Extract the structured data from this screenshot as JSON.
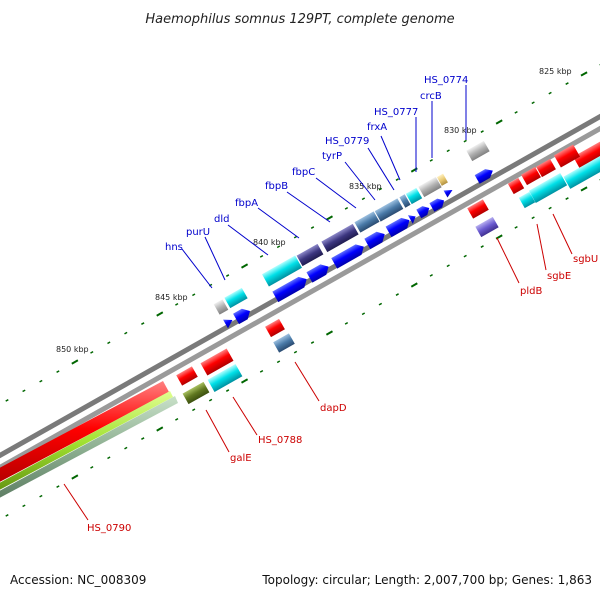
{
  "title": "Haemophilus somnus 129PT, complete genome",
  "footer": {
    "accession": "Accession: NC_008309",
    "summary": "Topology: circular; Length: 2,007,700 bp; Genes: 1,863"
  },
  "colors": {
    "label_forward": "#0000cc",
    "label_reverse": "#cc0000",
    "tick": "#006600",
    "backbone": "#888888"
  },
  "scale_labels": [
    "825 kbp",
    "830 kbp",
    "835 kbp",
    "840 kbp",
    "845 kbp",
    "850 kbp"
  ],
  "gene_labels_forward": [
    "HS_0774",
    "crcB",
    "HS_0777",
    "frxA",
    "HS_0779",
    "tyrP",
    "fbpC",
    "fbpB",
    "fbpA",
    "dld",
    "purU",
    "hns"
  ],
  "gene_labels_reverse": [
    "sgbU",
    "sgbE",
    "pldB",
    "dapD",
    "HS_0788",
    "galE",
    "HS_0790"
  ]
}
